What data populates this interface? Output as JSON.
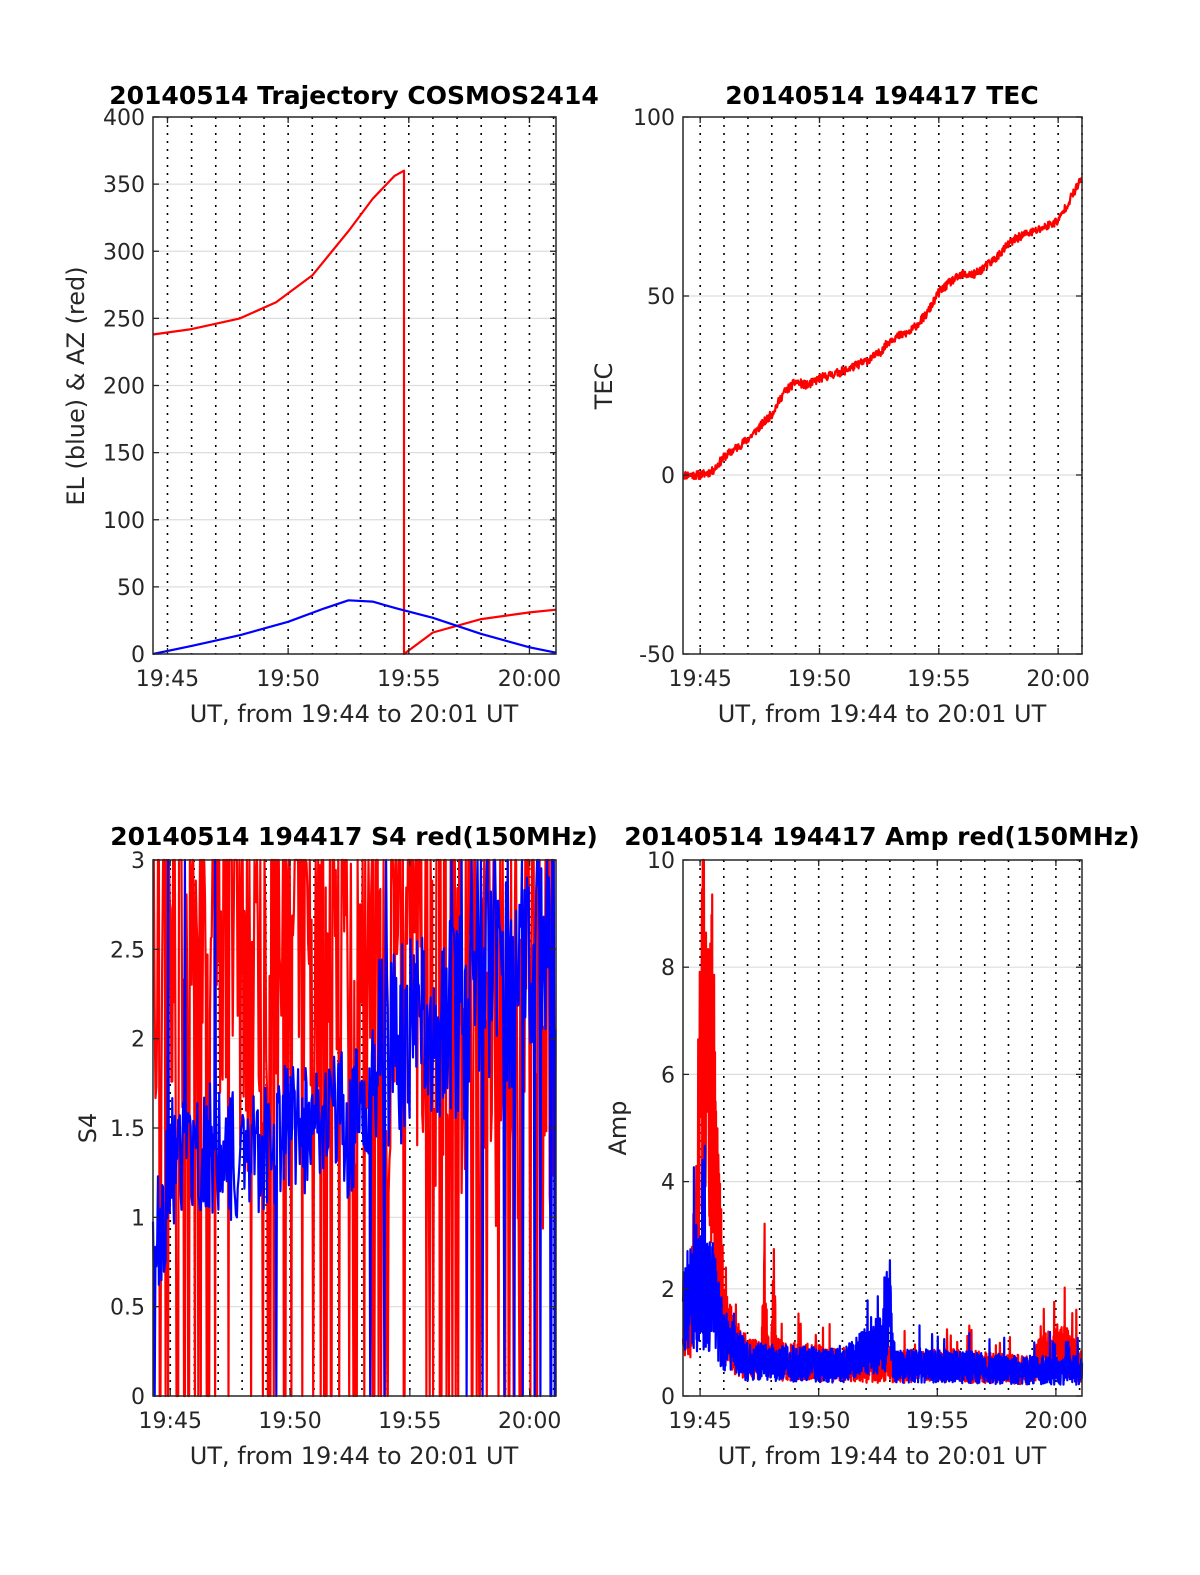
{
  "chart_data": [
    {
      "type": "line",
      "title": "20140514 Trajectory COSMOS2414",
      "xlabel": "UT, from 19:44 to 20:01 UT",
      "ylabel": "EL (blue) & AZ (red)",
      "x_unit": "minutes after 19:44 UT",
      "xlim": [
        0.4,
        17.1
      ],
      "ylim": [
        0,
        400
      ],
      "xticks": [
        1,
        6,
        11,
        16
      ],
      "xtick_labels": [
        "19:45",
        "19:50",
        "19:55",
        "20:00"
      ],
      "yticks": [
        0,
        50,
        100,
        150,
        200,
        250,
        300,
        350,
        400
      ],
      "ytick_labels": [
        "0",
        "50",
        "100",
        "150",
        "200",
        "250",
        "300",
        "350",
        "400"
      ],
      "grid": true,
      "series": [
        {
          "color": "#ff0000",
          "x": [
            0.4,
            2,
            4,
            5.5,
            7,
            8.5,
            9.5,
            10.4,
            10.8,
            10.8,
            12,
            14,
            16,
            17.1
          ],
          "y": [
            238,
            242,
            250,
            262,
            282,
            315,
            339,
            356,
            360,
            0,
            16,
            26,
            31,
            33
          ]
        },
        {
          "color": "#0000ff",
          "x": [
            0.4,
            2,
            4,
            6,
            7.5,
            8.5,
            9.5,
            10.5,
            12,
            14,
            16,
            17.1
          ],
          "y": [
            0,
            6,
            14,
            24,
            34,
            40,
            39,
            34,
            27,
            15,
            5,
            1
          ]
        }
      ]
    },
    {
      "type": "line",
      "title": "20140514 194417 TEC",
      "xlabel": "UT, from 19:44 to 20:01 UT",
      "ylabel": "TEC",
      "x_unit": "minutes after 19:44 UT",
      "xlim": [
        0.28,
        17.0
      ],
      "ylim": [
        -50,
        100
      ],
      "xticks": [
        1,
        6,
        11,
        16
      ],
      "xtick_labels": [
        "19:45",
        "19:50",
        "19:55",
        "20:00"
      ],
      "yticks": [
        -50,
        0,
        50,
        100
      ],
      "ytick_labels": [
        "-50",
        "0",
        "50",
        "100"
      ],
      "grid": true,
      "series": [
        {
          "color": "#ff0000",
          "x": [
            0.28,
            1.0,
            1.5,
            2.0,
            3.0,
            4.0,
            4.5,
            5.0,
            5.5,
            6.0,
            7.0,
            8.0,
            8.5,
            9.0,
            9.8,
            10.5,
            11.0,
            11.5,
            12.0,
            12.5,
            13.3,
            14.0,
            14.5,
            15.0,
            16.0,
            16.5,
            17.0
          ],
          "y": [
            0,
            0,
            1,
            5,
            10,
            17,
            23,
            26,
            25,
            27,
            29,
            32,
            34,
            38,
            40,
            45,
            51,
            54,
            56,
            56,
            60,
            65,
            67,
            68,
            71,
            77,
            83
          ]
        }
      ]
    },
    {
      "type": "line",
      "title": "20140514 194417 S4 red(150MHz)",
      "xlabel": "UT, from 19:44 to 20:01 UT",
      "ylabel": "S4",
      "x_unit": "minutes after 19:44 UT",
      "xlim": [
        0.28,
        17.1
      ],
      "ylim": [
        0,
        3
      ],
      "xticks": [
        1,
        6,
        11,
        16
      ],
      "xtick_labels": [
        "19:45",
        "19:50",
        "19:55",
        "20:00"
      ],
      "yticks": [
        0,
        0.5,
        1,
        1.5,
        2,
        2.5,
        3
      ],
      "ytick_labels": [
        "0",
        "0.5",
        "1",
        "1.5",
        "2",
        "2.5",
        "3"
      ],
      "grid": true,
      "series": [
        {
          "color": "#ff0000",
          "x": [
            0.3,
            2.0,
            4.0,
            6.0,
            8.0,
            10.0,
            12.0,
            14.0,
            16.0,
            17.0
          ],
          "y": [
            2.3,
            2.6,
            2.1,
            2.4,
            2.2,
            2.0,
            2.0,
            1.9,
            1.6,
            1.5
          ]
        },
        {
          "color": "#0000ff",
          "x": [
            0.3,
            0.6,
            1.0,
            2.0,
            3.0,
            4.0,
            5.0,
            6.0,
            7.0,
            8.0,
            8.5,
            9.0,
            10.0,
            11.0,
            12.0,
            13.0,
            14.0,
            15.0,
            16.0,
            17.0
          ],
          "y": [
            0.9,
            0.9,
            1.3,
            1.35,
            1.4,
            1.3,
            1.4,
            1.5,
            1.5,
            1.65,
            1.4,
            1.8,
            1.9,
            2.0,
            2.0,
            2.1,
            2.2,
            2.3,
            2.4,
            2.6
          ]
        }
      ]
    },
    {
      "type": "line",
      "title": "20140514 194417 Amp red(150MHz)",
      "xlabel": "UT, from 19:44 to 20:01 UT",
      "ylabel": "Amp",
      "x_unit": "minutes after 19:44 UT",
      "xlim": [
        0.28,
        17.1
      ],
      "ylim": [
        0,
        10
      ],
      "xticks": [
        1,
        6,
        11,
        16
      ],
      "xtick_labels": [
        "19:45",
        "19:50",
        "19:55",
        "20:00"
      ],
      "yticks": [
        0,
        2,
        4,
        6,
        8,
        10
      ],
      "ytick_labels": [
        "0",
        "2",
        "4",
        "6",
        "8",
        "10"
      ],
      "grid": true,
      "series": [
        {
          "color": "#ff0000",
          "x": [
            0.3,
            0.6,
            0.8,
            1.0,
            1.15,
            1.3,
            1.5,
            1.7,
            2.0,
            2.5,
            3.0,
            3.6,
            3.7,
            3.8,
            4.0,
            4.1,
            4.2,
            4.5,
            5.0,
            8.0,
            12.0,
            15.0,
            15.4,
            16.0,
            16.6,
            17.0
          ],
          "y": [
            1.6,
            2.0,
            3.2,
            7.0,
            9.1,
            6.5,
            7.8,
            4.5,
            1.8,
            1.1,
            0.9,
            0.8,
            3.2,
            1.0,
            0.8,
            2.6,
            0.9,
            0.8,
            0.8,
            0.7,
            0.7,
            0.6,
            1.0,
            1.1,
            1.0,
            0.7
          ]
        },
        {
          "color": "#0000ff",
          "x": [
            0.3,
            0.5,
            1.0,
            1.5,
            2.0,
            3.0,
            5.0,
            7.0,
            8.8,
            8.9,
            9.0,
            9.1,
            9.3,
            11.0,
            13.0,
            15.0,
            17.0
          ],
          "y": [
            2.5,
            2.2,
            2.4,
            2.4,
            1.3,
            0.8,
            0.75,
            0.7,
            1.3,
            2.3,
            2.1,
            1.0,
            0.7,
            0.7,
            0.65,
            0.6,
            0.6
          ]
        }
      ]
    }
  ]
}
